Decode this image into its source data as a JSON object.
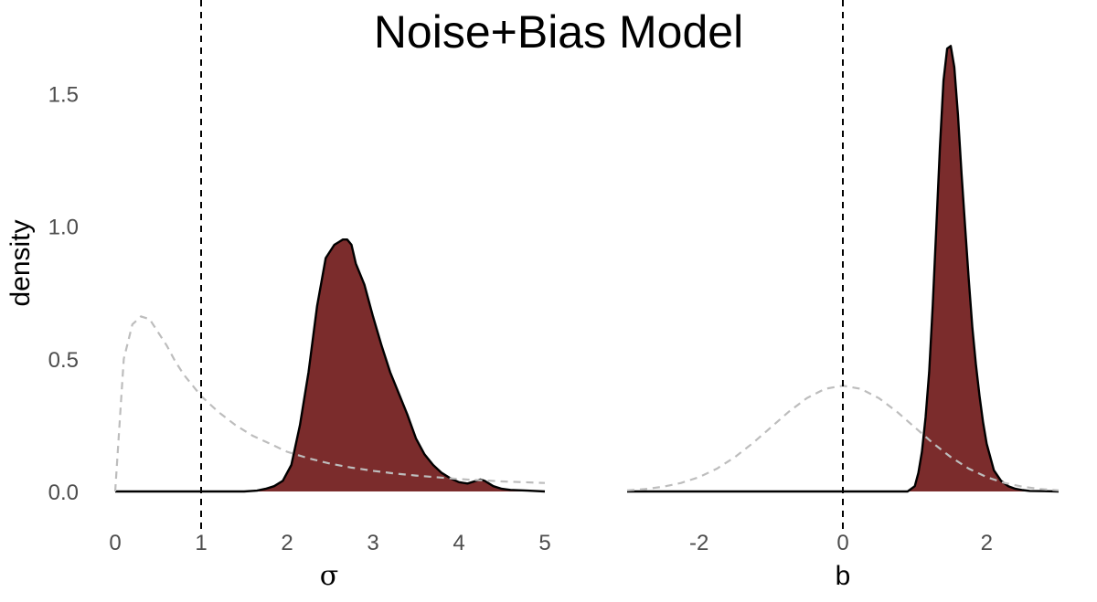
{
  "chart_data": [
    {
      "panel": "left",
      "type": "area",
      "title": "Noise+Bias Model",
      "xlabel": "σ",
      "ylabel": "density",
      "xlim": [
        0,
        5
      ],
      "ylim": [
        0,
        1.75
      ],
      "x_ticks": [
        "0",
        "1",
        "2",
        "3",
        "4",
        "5"
      ],
      "y_ticks": [
        "0.0",
        "0.5",
        "1.0",
        "1.5"
      ],
      "reference_line_x": 1,
      "grid": false,
      "posterior_color": "#7b2c2c",
      "prior_color": "#bdbdbd",
      "series": [
        {
          "role": "posterior",
          "x": [
            0,
            1.5,
            1.65,
            1.75,
            1.85,
            1.95,
            2.05,
            2.15,
            2.25,
            2.35,
            2.45,
            2.55,
            2.6,
            2.65,
            2.7,
            2.75,
            2.8,
            2.9,
            3.0,
            3.1,
            3.2,
            3.3,
            3.4,
            3.5,
            3.6,
            3.7,
            3.8,
            3.9,
            4.0,
            4.1,
            4.2,
            4.25,
            4.3,
            4.4,
            4.5,
            4.6,
            4.8,
            5.0
          ],
          "y": [
            0,
            0,
            0.003,
            0.01,
            0.02,
            0.04,
            0.1,
            0.25,
            0.45,
            0.7,
            0.88,
            0.93,
            0.94,
            0.95,
            0.95,
            0.93,
            0.86,
            0.78,
            0.66,
            0.55,
            0.45,
            0.37,
            0.29,
            0.2,
            0.14,
            0.1,
            0.07,
            0.05,
            0.035,
            0.03,
            0.04,
            0.045,
            0.04,
            0.02,
            0.01,
            0.006,
            0.003,
            0
          ]
        },
        {
          "role": "prior",
          "x": [
            0,
            0.05,
            0.1,
            0.2,
            0.3,
            0.4,
            0.5,
            0.6,
            0.7,
            0.8,
            0.9,
            1.0,
            1.2,
            1.4,
            1.6,
            1.8,
            2.0,
            2.25,
            2.5,
            2.75,
            3.0,
            3.25,
            3.5,
            4.0,
            4.5,
            5.0
          ],
          "y": [
            0,
            0.25,
            0.5,
            0.63,
            0.66,
            0.65,
            0.6,
            0.55,
            0.49,
            0.44,
            0.4,
            0.36,
            0.3,
            0.25,
            0.21,
            0.18,
            0.15,
            0.125,
            0.105,
            0.09,
            0.078,
            0.068,
            0.06,
            0.047,
            0.038,
            0.032
          ]
        }
      ]
    },
    {
      "panel": "right",
      "type": "area",
      "xlabel": "b",
      "xlim": [
        -3,
        3
      ],
      "ylim": [
        0,
        1.75
      ],
      "x_ticks": [
        "-2",
        "0",
        "2"
      ],
      "reference_line_x": 0,
      "grid": false,
      "posterior_color": "#7b2c2c",
      "prior_color": "#bdbdbd",
      "series": [
        {
          "role": "posterior",
          "x": [
            -3,
            0.9,
            1.0,
            1.05,
            1.1,
            1.15,
            1.2,
            1.25,
            1.3,
            1.35,
            1.4,
            1.45,
            1.5,
            1.55,
            1.6,
            1.65,
            1.7,
            1.75,
            1.8,
            1.85,
            1.9,
            1.95,
            2.0,
            2.1,
            2.2,
            2.3,
            2.4,
            2.5,
            2.6,
            3.0
          ],
          "y": [
            0,
            0,
            0.02,
            0.07,
            0.15,
            0.28,
            0.45,
            0.7,
            1.0,
            1.3,
            1.55,
            1.67,
            1.68,
            1.6,
            1.42,
            1.2,
            1.0,
            0.8,
            0.62,
            0.48,
            0.36,
            0.26,
            0.18,
            0.08,
            0.04,
            0.02,
            0.01,
            0.005,
            0.002,
            0
          ]
        },
        {
          "role": "prior",
          "x": [
            -3.0,
            -2.75,
            -2.5,
            -2.25,
            -2.0,
            -1.75,
            -1.5,
            -1.25,
            -1.0,
            -0.75,
            -0.5,
            -0.25,
            0.0,
            0.25,
            0.5,
            0.75,
            1.0,
            1.25,
            1.5,
            1.75,
            2.0,
            2.25,
            2.5,
            2.75,
            3.0
          ],
          "y": [
            0.004,
            0.009,
            0.018,
            0.032,
            0.054,
            0.086,
            0.13,
            0.183,
            0.242,
            0.301,
            0.352,
            0.387,
            0.399,
            0.387,
            0.352,
            0.301,
            0.242,
            0.183,
            0.13,
            0.086,
            0.054,
            0.032,
            0.018,
            0.009,
            0.004
          ]
        }
      ]
    }
  ]
}
